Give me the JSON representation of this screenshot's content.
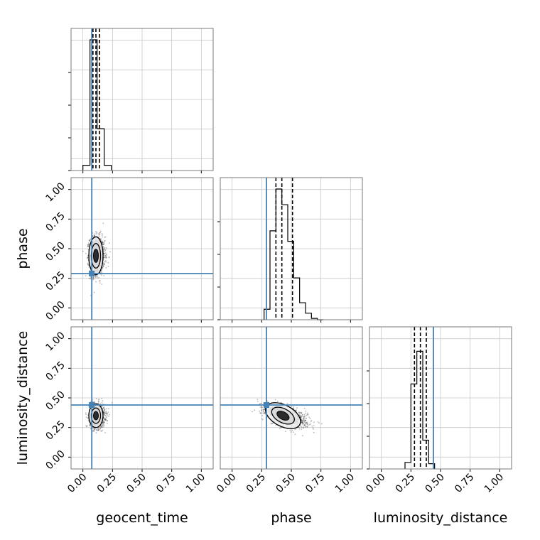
{
  "chart_data": {
    "type": "corner",
    "parameters": [
      "geocent_time",
      "phase",
      "luminosity_distance"
    ],
    "axis_limits": [
      [
        -0.1,
        1.1
      ],
      [
        -0.1,
        1.1
      ],
      [
        -0.1,
        1.1
      ]
    ],
    "ticks": [
      0.0,
      0.25,
      0.5,
      0.75,
      1.0
    ],
    "tick_labels": [
      "0.00",
      "0.25",
      "0.50",
      "0.75",
      "1.00"
    ],
    "grid": true,
    "truth_color": "#4682b4",
    "truths": {
      "geocent_time": 0.075,
      "phase": 0.29,
      "luminosity_distance": 0.44
    },
    "quantiles": {
      "geocent_time": [
        0.085,
        0.11,
        0.14
      ],
      "phase": [
        0.37,
        0.42,
        0.51
      ],
      "luminosity_distance": [
        0.28,
        0.33,
        0.38
      ]
    },
    "histograms": {
      "geocent_time": {
        "bin_edges": [
          0.0,
          0.06,
          0.12,
          0.18,
          0.24
        ],
        "counts": [
          0.04,
          1.0,
          0.32,
          0.04
        ]
      },
      "phase": {
        "bin_edges": [
          0.27,
          0.32,
          0.37,
          0.42,
          0.47,
          0.52,
          0.57,
          0.62,
          0.67,
          0.72,
          0.77
        ],
        "counts": [
          0.08,
          0.68,
          1.0,
          0.88,
          0.6,
          0.32,
          0.13,
          0.05,
          0.01,
          0.0
        ]
      },
      "luminosity_distance": {
        "bin_edges": [
          0.2,
          0.25,
          0.3,
          0.35,
          0.4,
          0.45
        ],
        "counts": [
          0.05,
          0.65,
          0.9,
          0.22,
          0.04
        ]
      }
    },
    "scatter": {
      "phase_vs_geocent_time": {
        "x_center": 0.11,
        "y_center": 0.44,
        "x_spread": 0.03,
        "y_spread": 0.08,
        "points": 1400
      },
      "luminosity_distance_vs_geocent_time": {
        "x_center": 0.11,
        "y_center": 0.35,
        "x_spread": 0.03,
        "y_spread": 0.05,
        "points": 1200
      },
      "luminosity_distance_vs_phase": {
        "x_center": 0.43,
        "y_center": 0.35,
        "x_spread": 0.08,
        "y_spread": 0.045,
        "points": 1400
      }
    }
  }
}
